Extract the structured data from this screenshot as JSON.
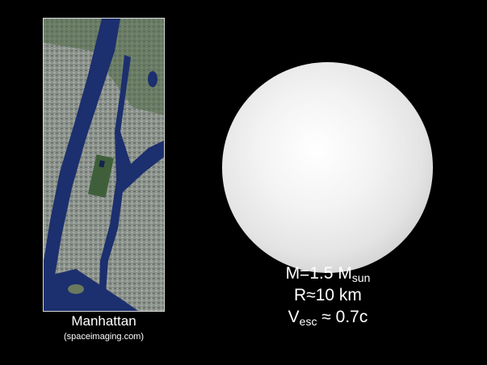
{
  "photo": {
    "caption": "Manhattan",
    "credit": "(spaceimaging.com)"
  },
  "star": {
    "mass_label": "M=1.5 M",
    "mass_sub": "sun",
    "radius_label": "R≈10 km",
    "vesc_label": "V",
    "vesc_sub": "esc",
    "vesc_value": " ≈ 0.7c"
  },
  "colors": {
    "background": "#000000",
    "water": "#1c2f6e",
    "land": "#7f8a82",
    "star_center": "#ffffff",
    "star_edge": "#a8a8a8"
  }
}
